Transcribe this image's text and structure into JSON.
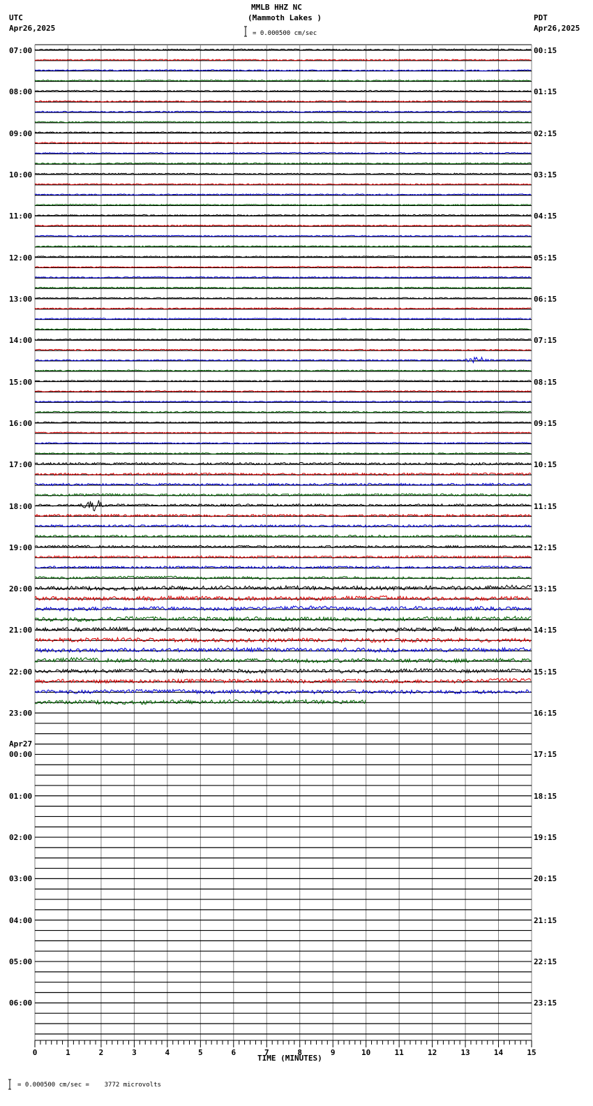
{
  "header": {
    "title": "MMLB HHZ NC",
    "subtitle": "(Mammoth Lakes )",
    "scale_text": "= 0.000500 cm/sec",
    "left_tz": "UTC",
    "left_date": "Apr26,2025",
    "right_tz": "PDT",
    "right_date": "Apr26,2025"
  },
  "footer": {
    "scale_note": "= 0.000500 cm/sec =    3772 microvolts",
    "x_axis_title": "TIME (MINUTES)"
  },
  "colors": {
    "trace_cycle": [
      "#000000",
      "#dd0000",
      "#0000dd",
      "#006600"
    ],
    "grid": "#808080",
    "baseline": "#000000"
  },
  "chart_data": {
    "type": "line",
    "title": "MMLB HHZ NC (Mammoth Lakes ) helicorder",
    "xlabel": "TIME (MINUTES)",
    "ylabel": "",
    "xlim": [
      0,
      15
    ],
    "x_ticks": [
      "0",
      "1",
      "2",
      "3",
      "4",
      "5",
      "6",
      "7",
      "8",
      "9",
      "10",
      "11",
      "12",
      "13",
      "14",
      "15"
    ],
    "rows_per_hour": 4,
    "total_rows": 96,
    "rows_with_data": 64,
    "last_row_data_end_minute": 10,
    "left_labels": [
      {
        "row": 0,
        "text": "07:00"
      },
      {
        "row": 4,
        "text": "08:00"
      },
      {
        "row": 8,
        "text": "09:00"
      },
      {
        "row": 12,
        "text": "10:00"
      },
      {
        "row": 16,
        "text": "11:00"
      },
      {
        "row": 20,
        "text": "12:00"
      },
      {
        "row": 24,
        "text": "13:00"
      },
      {
        "row": 28,
        "text": "14:00"
      },
      {
        "row": 32,
        "text": "15:00"
      },
      {
        "row": 36,
        "text": "16:00"
      },
      {
        "row": 40,
        "text": "17:00"
      },
      {
        "row": 44,
        "text": "18:00"
      },
      {
        "row": 48,
        "text": "19:00"
      },
      {
        "row": 52,
        "text": "20:00"
      },
      {
        "row": 56,
        "text": "21:00"
      },
      {
        "row": 60,
        "text": "22:00"
      },
      {
        "row": 64,
        "text": "23:00"
      },
      {
        "row": 68,
        "text": "00:00",
        "date": "Apr27"
      },
      {
        "row": 72,
        "text": "01:00"
      },
      {
        "row": 76,
        "text": "02:00"
      },
      {
        "row": 80,
        "text": "03:00"
      },
      {
        "row": 84,
        "text": "04:00"
      },
      {
        "row": 88,
        "text": "05:00"
      },
      {
        "row": 92,
        "text": "06:00"
      }
    ],
    "right_labels": [
      {
        "row": 0,
        "text": "00:15"
      },
      {
        "row": 4,
        "text": "01:15"
      },
      {
        "row": 8,
        "text": "02:15"
      },
      {
        "row": 12,
        "text": "03:15"
      },
      {
        "row": 16,
        "text": "04:15"
      },
      {
        "row": 20,
        "text": "05:15"
      },
      {
        "row": 24,
        "text": "06:15"
      },
      {
        "row": 28,
        "text": "07:15"
      },
      {
        "row": 32,
        "text": "08:15"
      },
      {
        "row": 36,
        "text": "09:15"
      },
      {
        "row": 40,
        "text": "10:15"
      },
      {
        "row": 44,
        "text": "11:15"
      },
      {
        "row": 48,
        "text": "12:15"
      },
      {
        "row": 52,
        "text": "13:15"
      },
      {
        "row": 56,
        "text": "14:15"
      },
      {
        "row": 60,
        "text": "15:15"
      },
      {
        "row": 64,
        "text": "16:15"
      },
      {
        "row": 68,
        "text": "17:15"
      },
      {
        "row": 72,
        "text": "18:15"
      },
      {
        "row": 76,
        "text": "19:15"
      },
      {
        "row": 80,
        "text": "20:15"
      },
      {
        "row": 84,
        "text": "21:15"
      },
      {
        "row": 88,
        "text": "22:15"
      },
      {
        "row": 92,
        "text": "23:15"
      }
    ],
    "events": [
      {
        "row": 44,
        "minute": 1.8,
        "amplitude": "large",
        "note": "local event on 18:00 row"
      },
      {
        "row": 30,
        "minute": 13.4,
        "amplitude": "moderate",
        "note": "event on 14:30 row"
      }
    ],
    "noise_level_by_row_range": [
      {
        "rows": [
          0,
          39
        ],
        "level": "low"
      },
      {
        "rows": [
          40,
          51
        ],
        "level": "moderate"
      },
      {
        "rows": [
          52,
          63
        ],
        "level": "high"
      }
    ]
  }
}
